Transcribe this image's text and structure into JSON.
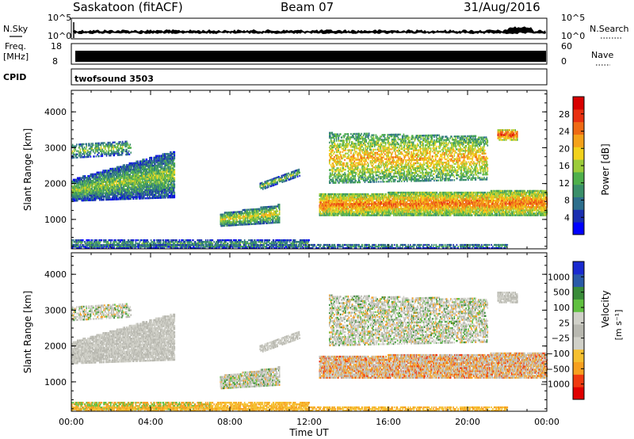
{
  "header": {
    "station": "Saskatoon (fitACF)",
    "beam": "Beam 07",
    "date": "31/Aug/2016"
  },
  "strips": {
    "nsky_label": "N.Sky",
    "nsky_ticks": [
      "10^5",
      "10^0"
    ],
    "nsearch_label": "N.Search",
    "nsearch_ticks": [
      "10^5",
      "10^0"
    ],
    "freq_label": "Freq.",
    "freq_unit": "[MHz]",
    "freq_ticks": [
      "18",
      "8"
    ],
    "nave_label": "Nave",
    "nave_ticks": [
      "60",
      "0"
    ],
    "cpid_label": "CPID",
    "cpid_value": "twofsound 3503"
  },
  "colors": {
    "power_scale": [
      "#0000ff",
      "#1a2fb0",
      "#2d6e8c",
      "#3a8f6a",
      "#4fb04c",
      "#9ccc3a",
      "#f2d21c",
      "#f5a21a",
      "#ef6a14",
      "#e83010",
      "#d80000"
    ],
    "velocity_scale": [
      "#e00000",
      "#f03a10",
      "#f7a020",
      "#f5c030",
      "#d0d0c8",
      "#b8b8b0",
      "#d0d0c8",
      "#60c040",
      "#3a8c3a",
      "#2a5aa8",
      "#1a2ad0"
    ]
  },
  "chart_data": [
    {
      "type": "heatmap",
      "panel": "power",
      "xlabel": "",
      "ylabel": "Slant Range [km]",
      "xlim_hours": [
        0,
        24
      ],
      "ylim": [
        180,
        4600
      ],
      "yticks": [
        "1000",
        "2000",
        "3000",
        "4000"
      ],
      "xticks": [
        "00:00",
        "04:00",
        "08:00",
        "12:00",
        "16:00",
        "20:00",
        "00:00"
      ],
      "colorbar_label": "Power [dB]",
      "colorbar_ticks": [
        "28",
        "24",
        "20",
        "16",
        "12",
        "8",
        "4"
      ],
      "clim": [
        0,
        30
      ]
    },
    {
      "type": "heatmap",
      "panel": "velocity",
      "xlabel": "Time UT",
      "ylabel": "Slant Range [km]",
      "xlim_hours": [
        0,
        24
      ],
      "ylim": [
        180,
        4600
      ],
      "yticks": [
        "1000",
        "2000",
        "3000",
        "4000"
      ],
      "xticks": [
        "00:00",
        "04:00",
        "08:00",
        "12:00",
        "16:00",
        "20:00",
        "00:00"
      ],
      "colorbar_label": "Velocity",
      "colorbar_unit": "[m s⁻¹]",
      "colorbar_ticks": [
        "1000",
        "500",
        "100",
        "25",
        "−25",
        "−100",
        "−500",
        "−1000"
      ],
      "clim": [
        -1000,
        1000
      ]
    }
  ]
}
